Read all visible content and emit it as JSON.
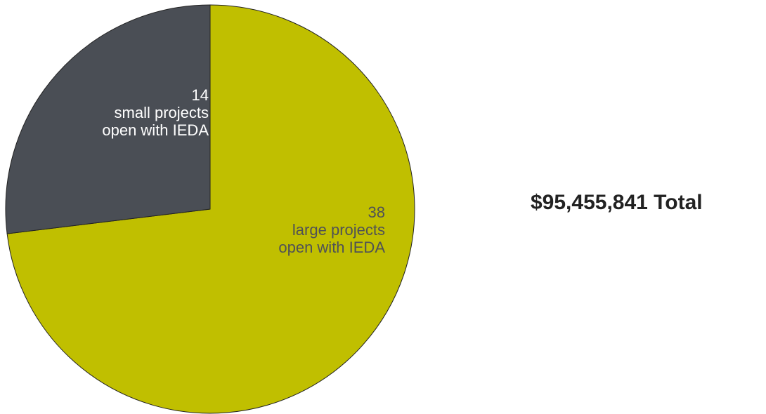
{
  "chart_data": {
    "type": "pie",
    "slices": [
      {
        "value": 38,
        "count": "38",
        "line1": "large projects",
        "line2": "open with IEDA",
        "color": "#c0bf00",
        "text_color": "#4f5156"
      },
      {
        "value": 14,
        "count": "14",
        "line1": "small projects",
        "line2": "open with IEDA",
        "color": "#4a4e55",
        "text_color": "#ffffff"
      }
    ],
    "start": "top",
    "direction": "clockwise",
    "stroke_color": "#222222"
  },
  "total": {
    "text": "$95,455,841 Total"
  }
}
